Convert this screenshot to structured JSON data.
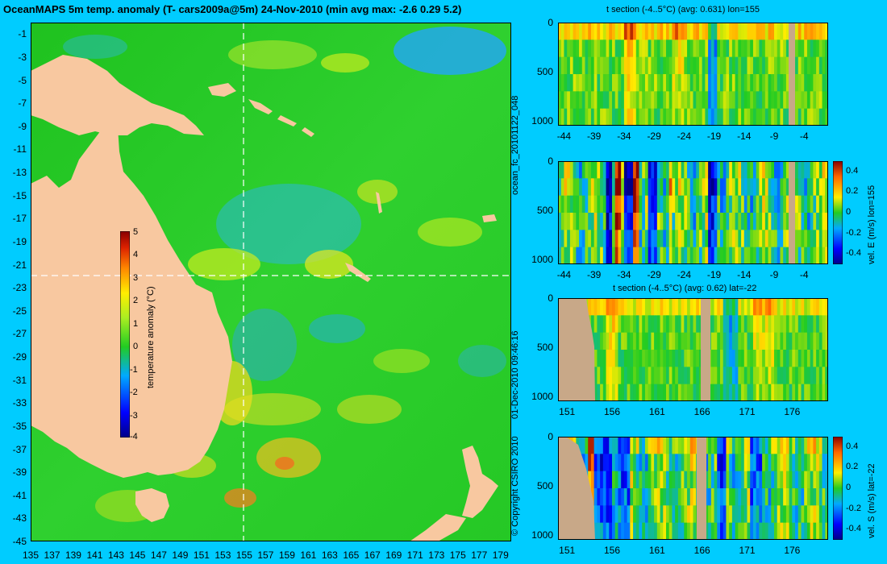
{
  "header": {
    "title": "OceanMAPS 5m temp. anomaly (T- cars2009a@5m) 24-Nov-2010 (min avg max: -2.6 0.29 5.2)"
  },
  "side_text": {
    "run_id": "ocean_fc_20101122_048",
    "timestamp": "01-Dec-2010 09:46:16",
    "copyright": "© Copyright CSIRO 2010"
  },
  "colors": {
    "background": "#00ccff",
    "land": "#f8c8a0",
    "section_land": "#c8a888",
    "ocean": "#22cc22"
  },
  "chart_data": [
    {
      "type": "heatmap",
      "title": "OceanMAPS 5m temp. anomaly (T- cars2009a@5m) 24-Nov-2010 (min avg max: -2.6 0.29 5.2)",
      "x_ticks": [
        "135",
        "137",
        "139",
        "141",
        "143",
        "145",
        "147",
        "149",
        "151",
        "153",
        "155",
        "157",
        "159",
        "161",
        "163",
        "165",
        "167",
        "169",
        "171",
        "173",
        "175",
        "177",
        "179"
      ],
      "y_ticks": [
        "-1",
        "-3",
        "-5",
        "-7",
        "-9",
        "-11",
        "-13",
        "-15",
        "-17",
        "-19",
        "-21",
        "-23",
        "-25",
        "-27",
        "-29",
        "-31",
        "-33",
        "-35",
        "-37",
        "-39",
        "-41",
        "-43",
        "-45"
      ],
      "xlim": [
        135,
        180
      ],
      "ylim": [
        -45,
        0
      ],
      "section_lines": {
        "lon": 155,
        "lat": -22
      },
      "colorbar": {
        "label": "temperature anomaly (°C)",
        "ticks": [
          "5",
          "4",
          "3",
          "2",
          "1",
          "0",
          "-1",
          "-2",
          "-3",
          "-4"
        ],
        "range": [
          -4,
          5
        ]
      },
      "stats": {
        "min": -2.6,
        "avg": 0.29,
        "max": 5.2
      }
    },
    {
      "type": "heatmap",
      "title": "t section (-4..5°C) (avg: 0.631) lon=155",
      "x_ticks": [
        "-44",
        "-39",
        "-34",
        "-29",
        "-24",
        "-19",
        "-14",
        "-9",
        "-4"
      ],
      "y_ticks": [
        "0",
        "500",
        "1000"
      ],
      "xlim": [
        -45,
        0
      ],
      "ylim": [
        1050,
        0
      ]
    },
    {
      "type": "heatmap",
      "title": "",
      "x_ticks": [
        "-44",
        "-39",
        "-34",
        "-29",
        "-24",
        "-19",
        "-14",
        "-9",
        "-4"
      ],
      "y_ticks": [
        "0",
        "500",
        "1000"
      ],
      "xlim": [
        -45,
        0
      ],
      "ylim": [
        1050,
        0
      ],
      "colorbar": {
        "label": "vel. E (m/s) lon=155",
        "ticks": [
          "0.4",
          "0.2",
          "0",
          "-0.2",
          "-0.4"
        ],
        "range": [
          -0.5,
          0.5
        ]
      }
    },
    {
      "type": "heatmap",
      "title": "t section (-4..5°C) (avg: 0.62) lat=-22",
      "x_ticks": [
        "151",
        "156",
        "161",
        "166",
        "171",
        "176"
      ],
      "y_ticks": [
        "0",
        "500",
        "1000"
      ],
      "xlim": [
        150,
        180
      ],
      "ylim": [
        1050,
        0
      ]
    },
    {
      "type": "heatmap",
      "title": "",
      "x_ticks": [
        "151",
        "156",
        "161",
        "166",
        "171",
        "176"
      ],
      "y_ticks": [
        "0",
        "500",
        "1000"
      ],
      "xlim": [
        150,
        180
      ],
      "ylim": [
        1050,
        0
      ],
      "colorbar": {
        "label": "vel. S (m/s) lat=-22",
        "ticks": [
          "0.4",
          "0.2",
          "0",
          "-0.2",
          "-0.4"
        ],
        "range": [
          -0.5,
          0.5
        ]
      }
    }
  ]
}
